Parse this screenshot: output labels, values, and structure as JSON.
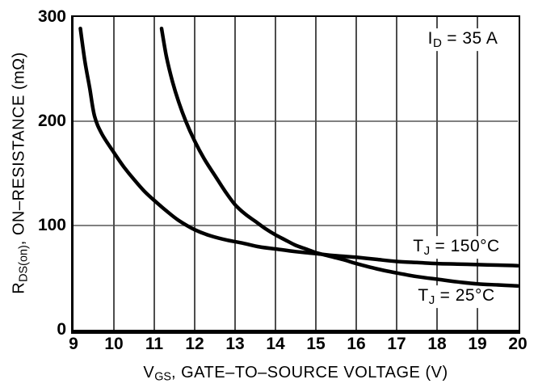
{
  "chart_data": {
    "type": "line",
    "title": "",
    "xlabel": "VGS, GATE–TO–SOURCE VOLTAGE (V)",
    "ylabel": "RDS(on), ON–RESISTANCE (mΩ)",
    "x_axis": {
      "title": {
        "base": "V",
        "sub": "GS",
        "rest": ", GATE–TO–SOURCE VOLTAGE (V)"
      },
      "ticks": [
        9,
        10,
        11,
        12,
        13,
        14,
        15,
        16,
        17,
        18,
        19,
        20
      ]
    },
    "y_axis": {
      "title": {
        "base": "R",
        "sub": "DS(on)",
        "rest": ", ON–RESISTANCE (mΩ)"
      },
      "ticks": [
        0,
        100,
        200,
        300
      ]
    },
    "xlim": [
      9,
      20
    ],
    "ylim": [
      0,
      300
    ],
    "x_gridlines": [
      10,
      11,
      12,
      13,
      14,
      15,
      16,
      17,
      18,
      19
    ],
    "y_gridlines": [
      100,
      200
    ],
    "grid": true,
    "legend_position": "inline-labels",
    "annotations": {
      "drain_current": {
        "base": "I",
        "sub": "D",
        "rest": " = 35 A"
      },
      "curve_150": {
        "base": "T",
        "sub": "J",
        "rest": " = 150°C"
      },
      "curve_25": {
        "base": "T",
        "sub": "J",
        "rest": " = 25°C"
      }
    },
    "series": [
      {
        "name": "TJ = 150°C",
        "points": [
          [
            9.17,
            289
          ],
          [
            9.28,
            258
          ],
          [
            9.4,
            232
          ],
          [
            9.52,
            205
          ],
          [
            9.7,
            188
          ],
          [
            10,
            170
          ],
          [
            10.25,
            156
          ],
          [
            10.5,
            144
          ],
          [
            10.75,
            133
          ],
          [
            11,
            124
          ],
          [
            11.3,
            114
          ],
          [
            11.6,
            105
          ],
          [
            12,
            96
          ],
          [
            12.4,
            90
          ],
          [
            12.8,
            86
          ],
          [
            13.2,
            83
          ],
          [
            13.6,
            79.5
          ],
          [
            14,
            77.5
          ],
          [
            14.5,
            75
          ],
          [
            15,
            73
          ],
          [
            15.5,
            71
          ],
          [
            16,
            69.5
          ],
          [
            16.5,
            67.5
          ],
          [
            17,
            65.5
          ],
          [
            17.5,
            64.5
          ],
          [
            18,
            63.5
          ],
          [
            18.5,
            63
          ],
          [
            19,
            62.5
          ],
          [
            19.5,
            62
          ],
          [
            20,
            61.5
          ]
        ]
      },
      {
        "name": "TJ = 25°C",
        "points": [
          [
            11.18,
            289
          ],
          [
            11.3,
            262
          ],
          [
            11.45,
            238
          ],
          [
            11.6,
            219
          ],
          [
            11.78,
            200
          ],
          [
            12,
            181
          ],
          [
            12.25,
            163
          ],
          [
            12.5,
            148
          ],
          [
            12.75,
            133
          ],
          [
            13,
            120
          ],
          [
            13.25,
            111
          ],
          [
            13.5,
            104
          ],
          [
            13.75,
            97
          ],
          [
            14,
            91
          ],
          [
            14.25,
            86
          ],
          [
            14.5,
            81
          ],
          [
            14.75,
            77.5
          ],
          [
            15,
            74
          ],
          [
            15.25,
            71.5
          ],
          [
            15.5,
            69
          ],
          [
            15.75,
            66.5
          ],
          [
            16,
            63.5
          ],
          [
            16.5,
            58.5
          ],
          [
            17,
            54.5
          ],
          [
            17.5,
            51
          ],
          [
            18,
            48.5
          ],
          [
            18.5,
            46
          ],
          [
            19,
            44
          ],
          [
            19.5,
            43
          ],
          [
            20,
            42
          ]
        ]
      }
    ],
    "colors": {
      "curve": "#000000",
      "grid_vertical": "#4d4d4d",
      "grid_horizontal": "#808080",
      "axis": "#000000",
      "background": "#ffffff"
    }
  }
}
